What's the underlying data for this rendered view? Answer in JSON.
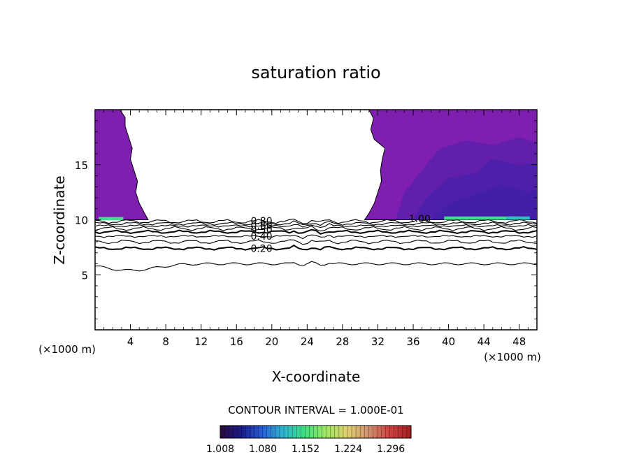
{
  "chart_data": {
    "type": "contour",
    "title": "saturation ratio",
    "xlabel": "X-coordinate",
    "ylabel": "Z-coordinate",
    "x_unit": "(×1000 m)",
    "xlim": [
      0,
      50
    ],
    "ylim": [
      0,
      20
    ],
    "x_ticks": [
      4,
      8,
      12,
      16,
      20,
      24,
      28,
      32,
      36,
      40,
      44,
      48
    ],
    "y_ticks": [
      5,
      10,
      15
    ],
    "contour_interval_text": "CONTOUR INTERVAL = 1.000E-01",
    "contour_levels": [
      0.1,
      0.2,
      0.3,
      0.4,
      0.5,
      0.6,
      0.7,
      0.8,
      0.9
    ],
    "contour_labels": [
      {
        "text": "0.80",
        "x": 17.6,
        "z": 9.9
      },
      {
        "text": "0.60",
        "x": 17.6,
        "z": 9.5
      },
      {
        "text": "0.50",
        "x": 17.6,
        "z": 9.1
      },
      {
        "text": "0.40",
        "x": 17.6,
        "z": 8.5
      },
      {
        "text": "0.20",
        "x": 17.6,
        "z": 7.4
      },
      {
        "text": "1.00",
        "x": 35.5,
        "z": 10.1
      }
    ],
    "colorbar": {
      "ticks": [
        "1.008",
        "1.080",
        "1.152",
        "1.224",
        "1.296"
      ],
      "min": 1.008,
      "max": 1.33,
      "colors": [
        "#2a0a3a",
        "#1a1a8a",
        "#2a60d8",
        "#30b8d0",
        "#40e080",
        "#a0e860",
        "#e0d070",
        "#d09070",
        "#d04040",
        "#a02020"
      ]
    },
    "filled_regions": {
      "supersaturated_layer_base_z": 10.0,
      "left_region_x": [
        0,
        6
      ],
      "right_region_x": [
        30.5,
        50
      ],
      "fill_color": "#7f1fb0",
      "dark_fill_color": "#3f1fa8",
      "high_color": "#40e090"
    }
  }
}
